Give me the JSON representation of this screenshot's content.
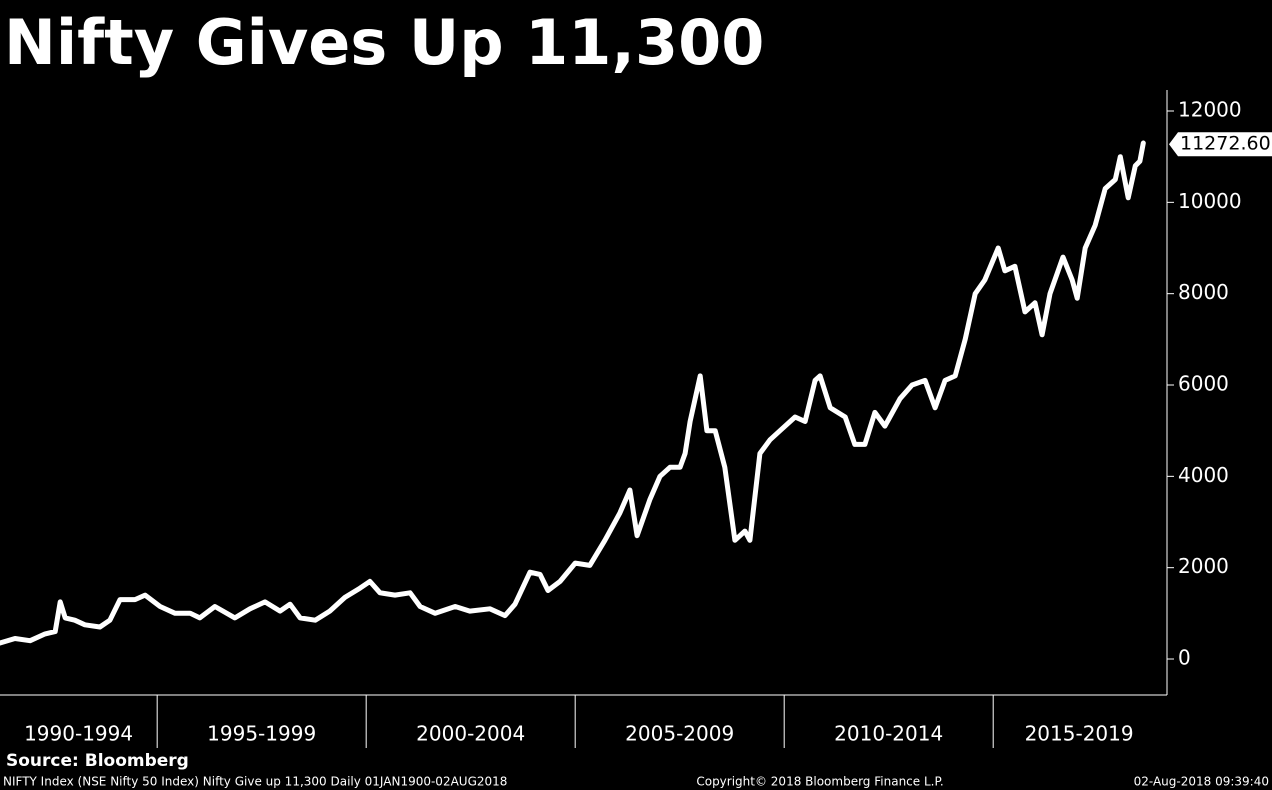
{
  "chart_data": {
    "type": "line",
    "title": "Nifty Gives Up 11,300",
    "source": "Source: Bloomberg",
    "footer_left": "NIFTY Index (NSE Nifty 50 Index) Nifty Give up 11,300  Daily 01JAN1900-02AUG2018",
    "footer_center": "Copyright© 2018 Bloomberg Finance L.P.",
    "footer_right": "02-Aug-2018 09:39:40",
    "categories": [
      "1990-1994",
      "1995-1999",
      "2000-2004",
      "2005-2009",
      "2010-2014",
      "2015-2019"
    ],
    "xlim": [
      1991.24,
      2019.11
    ],
    "xticks": [
      1995,
      2000,
      2005,
      2010,
      2015
    ],
    "ylim": [
      -788,
      12460
    ],
    "yticks": [
      0,
      2000,
      4000,
      6000,
      8000,
      10000,
      12000
    ],
    "color": "#ffffff",
    "last_label": {
      "value": 11272.6,
      "label": "11272.60"
    },
    "x": [
      1991.24,
      1991.6,
      1991.96,
      1992.32,
      1992.56,
      1992.68,
      1992.8,
      1993.03,
      1993.27,
      1993.63,
      1993.87,
      1994.11,
      1994.47,
      1994.71,
      1995.07,
      1995.43,
      1995.79,
      1996.02,
      1996.38,
      1996.86,
      1997.22,
      1997.58,
      1997.94,
      1998.18,
      1998.42,
      1998.78,
      1999.13,
      1999.49,
      1999.85,
      2000.09,
      2000.33,
      2000.69,
      2001.05,
      2001.29,
      2001.65,
      2002.13,
      2002.48,
      2002.96,
      2003.32,
      2003.56,
      2003.92,
      2004.16,
      2004.35,
      2004.64,
      2005.0,
      2005.35,
      2005.71,
      2006.07,
      2006.31,
      2006.48,
      2006.79,
      2007.03,
      2007.27,
      2007.51,
      2007.63,
      2007.75,
      2007.99,
      2008.15,
      2008.35,
      2008.58,
      2008.82,
      2009.06,
      2009.18,
      2009.42,
      2009.66,
      2009.9,
      2010.26,
      2010.5,
      2010.74,
      2010.86,
      2011.1,
      2011.46,
      2011.69,
      2011.93,
      2012.17,
      2012.41,
      2012.77,
      2013.06,
      2013.37,
      2013.61,
      2013.85,
      2014.09,
      2014.33,
      2014.57,
      2014.8,
      2015.12,
      2015.28,
      2015.52,
      2015.76,
      2016.0,
      2016.17,
      2016.36,
      2016.67,
      2016.89,
      2017.01,
      2017.2,
      2017.44,
      2017.68,
      2017.92,
      2018.04,
      2018.23,
      2018.4,
      2018.51,
      2018.59
    ],
    "values": [
      350,
      450,
      400,
      550,
      600,
      1250,
      900,
      850,
      750,
      700,
      850,
      1300,
      1300,
      1400,
      1150,
      1000,
      1000,
      900,
      1150,
      900,
      1100,
      1250,
      1050,
      1200,
      900,
      850,
      1050,
      1350,
      1550,
      1700,
      1450,
      1400,
      1450,
      1150,
      1000,
      1150,
      1050,
      1100,
      950,
      1200,
      1900,
      1850,
      1500,
      1700,
      2100,
      2050,
      2600,
      3200,
      3700,
      2700,
      3500,
      4000,
      4200,
      4200,
      4500,
      5200,
      6200,
      5000,
      5000,
      4200,
      2600,
      2800,
      2600,
      4500,
      4800,
      5000,
      5300,
      5200,
      6100,
      6200,
      5500,
      5300,
      4700,
      4700,
      5400,
      5100,
      5700,
      6000,
      6100,
      5500,
      6100,
      6200,
      7000,
      8000,
      8300,
      9000,
      8500,
      8600,
      7600,
      7800,
      7100,
      8000,
      8800,
      8300,
      7900,
      9000,
      9500,
      10300,
      10500,
      11000,
      10100,
      10800,
      10900,
      11300
    ]
  }
}
